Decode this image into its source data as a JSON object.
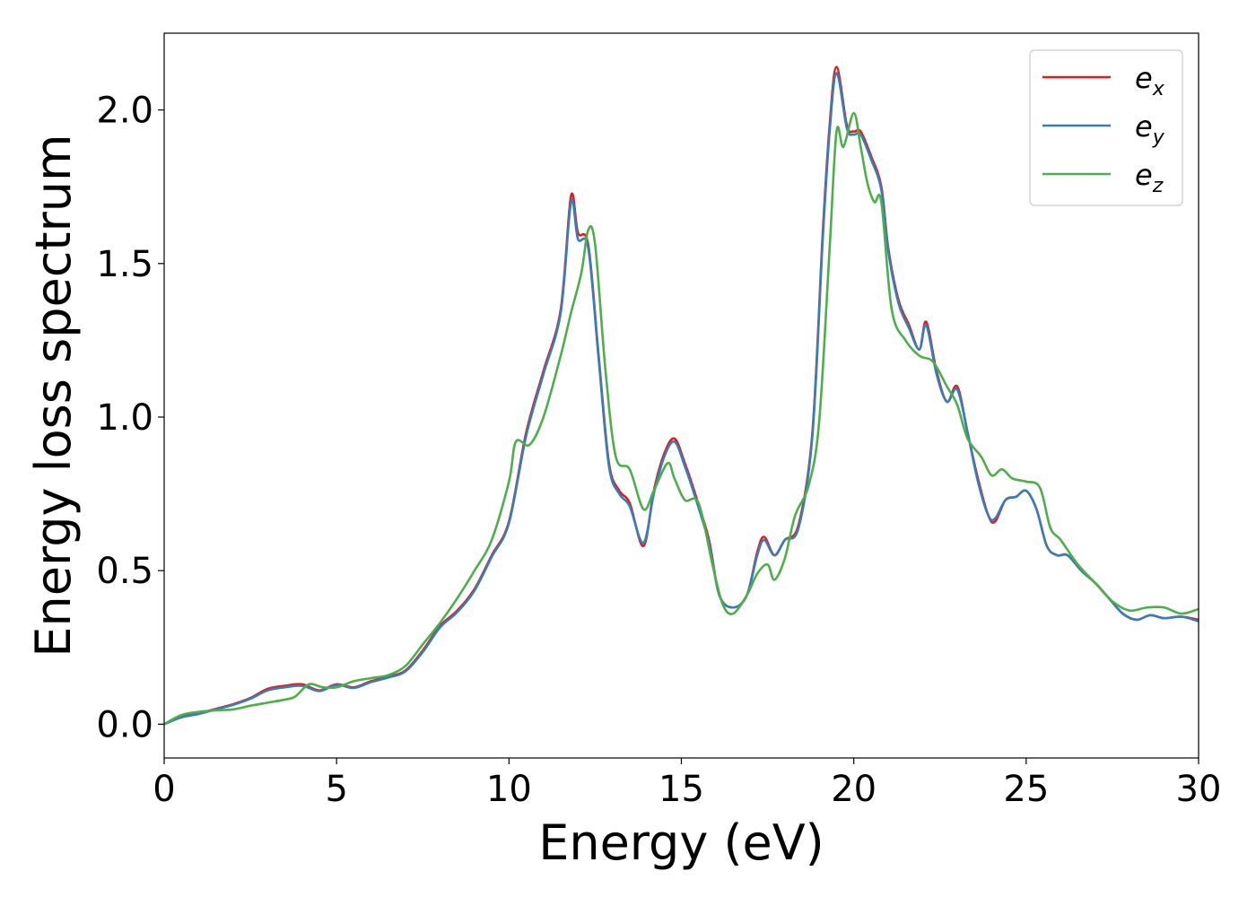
{
  "chart_data": {
    "type": "line",
    "xlabel": "Energy (eV)",
    "ylabel": "Energy loss spectrum",
    "xlim": [
      0,
      30
    ],
    "ylim": [
      -0.11,
      2.25
    ],
    "xticks": [
      0,
      5,
      10,
      15,
      20,
      25,
      30
    ],
    "yticks": [
      0.0,
      0.5,
      1.0,
      1.5,
      2.0
    ],
    "xtick_labels": [
      "0",
      "5",
      "10",
      "15",
      "20",
      "25",
      "30"
    ],
    "ytick_labels": [
      "0.0",
      "0.5",
      "1.0",
      "1.5",
      "2.0"
    ],
    "grid": false,
    "legend_position": "top-right",
    "series": [
      {
        "name": "e_x",
        "label_base": "e",
        "label_sub": "x",
        "color": "#e41a1c",
        "x": [
          0,
          0.5,
          1.0,
          1.5,
          2.0,
          2.5,
          3.0,
          3.5,
          4.0,
          4.5,
          5.0,
          5.5,
          6.0,
          6.5,
          7.0,
          7.5,
          8.0,
          8.5,
          9.0,
          9.5,
          10.0,
          10.5,
          11.0,
          11.5,
          11.8,
          12.0,
          12.3,
          12.6,
          12.9,
          13.2,
          13.5,
          13.9,
          14.2,
          14.5,
          14.8,
          15.1,
          15.4,
          15.8,
          16.1,
          16.5,
          16.9,
          17.2,
          17.4,
          17.7,
          18.0,
          18.4,
          18.8,
          19.1,
          19.3,
          19.5,
          19.8,
          20.0,
          20.2,
          20.5,
          20.8,
          21.0,
          21.3,
          21.6,
          21.9,
          22.1,
          22.4,
          22.7,
          23.0,
          23.3,
          23.6,
          23.9,
          24.1,
          24.4,
          24.7,
          25.0,
          25.3,
          25.6,
          25.9,
          26.2,
          26.6,
          27.0,
          27.4,
          27.8,
          28.2,
          28.6,
          29.0,
          29.5,
          30.0
        ],
        "y": [
          0.0,
          0.025,
          0.035,
          0.05,
          0.065,
          0.085,
          0.115,
          0.125,
          0.13,
          0.11,
          0.13,
          0.12,
          0.14,
          0.155,
          0.175,
          0.24,
          0.32,
          0.37,
          0.44,
          0.55,
          0.66,
          0.95,
          1.15,
          1.35,
          1.72,
          1.6,
          1.56,
          1.2,
          0.85,
          0.76,
          0.72,
          0.58,
          0.76,
          0.88,
          0.93,
          0.85,
          0.75,
          0.6,
          0.42,
          0.38,
          0.42,
          0.56,
          0.61,
          0.55,
          0.6,
          0.65,
          0.95,
          1.6,
          1.95,
          2.14,
          1.95,
          1.93,
          1.93,
          1.85,
          1.75,
          1.55,
          1.38,
          1.3,
          1.22,
          1.31,
          1.15,
          1.05,
          1.1,
          0.95,
          0.8,
          0.68,
          0.66,
          0.73,
          0.74,
          0.76,
          0.7,
          0.58,
          0.55,
          0.55,
          0.5,
          0.46,
          0.41,
          0.36,
          0.34,
          0.355,
          0.345,
          0.35,
          0.34
        ]
      },
      {
        "name": "e_y",
        "label_base": "e",
        "label_sub": "y",
        "color": "#377eb8",
        "x": [
          0,
          0.5,
          1.0,
          1.5,
          2.0,
          2.5,
          3.0,
          3.5,
          4.0,
          4.5,
          5.0,
          5.5,
          6.0,
          6.5,
          7.0,
          7.5,
          8.0,
          8.5,
          9.0,
          9.5,
          10.0,
          10.5,
          11.0,
          11.5,
          11.8,
          12.0,
          12.3,
          12.6,
          12.9,
          13.2,
          13.5,
          13.9,
          14.2,
          14.5,
          14.8,
          15.1,
          15.4,
          15.8,
          16.1,
          16.5,
          16.9,
          17.2,
          17.4,
          17.7,
          18.0,
          18.4,
          18.8,
          19.1,
          19.3,
          19.5,
          19.8,
          20.0,
          20.2,
          20.5,
          20.8,
          21.0,
          21.3,
          21.6,
          21.9,
          22.1,
          22.4,
          22.7,
          23.0,
          23.3,
          23.6,
          23.9,
          24.1,
          24.4,
          24.7,
          25.0,
          25.3,
          25.6,
          25.9,
          26.2,
          26.6,
          27.0,
          27.4,
          27.8,
          28.2,
          28.6,
          29.0,
          29.5,
          30.0
        ],
        "y": [
          0.0,
          0.022,
          0.033,
          0.048,
          0.063,
          0.083,
          0.11,
          0.12,
          0.125,
          0.108,
          0.128,
          0.118,
          0.137,
          0.152,
          0.172,
          0.235,
          0.315,
          0.365,
          0.435,
          0.545,
          0.655,
          0.94,
          1.14,
          1.34,
          1.7,
          1.58,
          1.55,
          1.19,
          0.84,
          0.75,
          0.71,
          0.59,
          0.75,
          0.87,
          0.92,
          0.84,
          0.74,
          0.59,
          0.42,
          0.38,
          0.42,
          0.55,
          0.6,
          0.55,
          0.6,
          0.64,
          0.94,
          1.58,
          1.93,
          2.12,
          1.94,
          1.92,
          1.92,
          1.84,
          1.74,
          1.54,
          1.37,
          1.29,
          1.22,
          1.3,
          1.14,
          1.05,
          1.09,
          0.95,
          0.79,
          0.68,
          0.67,
          0.73,
          0.74,
          0.76,
          0.7,
          0.58,
          0.55,
          0.55,
          0.5,
          0.46,
          0.41,
          0.36,
          0.34,
          0.355,
          0.345,
          0.35,
          0.335
        ]
      },
      {
        "name": "e_z",
        "label_base": "e",
        "label_sub": "z",
        "color": "#4daf4a",
        "x": [
          0,
          0.5,
          1.0,
          1.5,
          2.0,
          2.5,
          3.0,
          3.5,
          3.8,
          4.2,
          4.6,
          5.0,
          5.5,
          6.0,
          6.5,
          7.0,
          7.5,
          8.0,
          8.5,
          9.0,
          9.5,
          10.0,
          10.2,
          10.6,
          11.0,
          11.5,
          11.8,
          12.1,
          12.3,
          12.5,
          12.8,
          13.1,
          13.5,
          13.9,
          14.2,
          14.6,
          14.8,
          15.1,
          15.5,
          15.9,
          16.2,
          16.5,
          16.9,
          17.2,
          17.5,
          17.7,
          18.0,
          18.3,
          18.7,
          19.0,
          19.3,
          19.5,
          19.7,
          20.0,
          20.2,
          20.4,
          20.6,
          20.8,
          21.1,
          21.5,
          21.9,
          22.3,
          22.7,
          23.0,
          23.3,
          23.7,
          24.0,
          24.3,
          24.6,
          25.0,
          25.4,
          25.7,
          26.0,
          26.5,
          27.0,
          27.5,
          28.0,
          28.5,
          29.0,
          29.5,
          30.0
        ],
        "y": [
          0.0,
          0.03,
          0.04,
          0.045,
          0.048,
          0.06,
          0.07,
          0.08,
          0.09,
          0.13,
          0.12,
          0.12,
          0.14,
          0.15,
          0.16,
          0.19,
          0.26,
          0.33,
          0.41,
          0.5,
          0.6,
          0.79,
          0.92,
          0.91,
          1.0,
          1.2,
          1.34,
          1.47,
          1.61,
          1.56,
          1.15,
          0.87,
          0.83,
          0.7,
          0.76,
          0.85,
          0.8,
          0.73,
          0.72,
          0.52,
          0.39,
          0.36,
          0.42,
          0.49,
          0.52,
          0.47,
          0.54,
          0.68,
          0.78,
          0.99,
          1.55,
          1.93,
          1.88,
          1.99,
          1.88,
          1.76,
          1.7,
          1.7,
          1.35,
          1.25,
          1.2,
          1.18,
          1.1,
          1.04,
          0.93,
          0.87,
          0.81,
          0.83,
          0.8,
          0.79,
          0.77,
          0.64,
          0.6,
          0.52,
          0.46,
          0.4,
          0.37,
          0.38,
          0.38,
          0.36,
          0.375
        ]
      }
    ]
  }
}
